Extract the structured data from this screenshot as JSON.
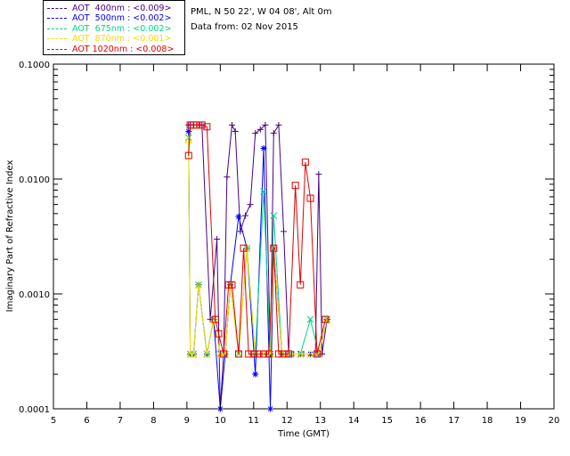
{
  "header": {
    "line1": "PML, N 50 22', W 04 08', Alt 0m",
    "line2": "Data from: 02 Nov 2015"
  },
  "chart_data": {
    "type": "line",
    "xlabel": "Time (GMT)",
    "ylabel": "Imaginary Part of Refractive Index",
    "xlim": [
      5,
      20
    ],
    "ylim": [
      0.0001,
      0.1
    ],
    "yscale": "log",
    "xticks": [
      5,
      6,
      7,
      8,
      9,
      10,
      11,
      12,
      13,
      14,
      15,
      16,
      17,
      18,
      19,
      20
    ],
    "yticks": [
      {
        "value": 0.0001,
        "label": "0.0001"
      },
      {
        "value": 0.001,
        "label": "0.0010"
      },
      {
        "value": 0.01,
        "label": "0.0100"
      },
      {
        "value": 0.1,
        "label": "0.1000"
      }
    ],
    "legend_position": "top-left",
    "series": [
      {
        "name": "AOT  400nm : <0.009>",
        "color": "#4b0082",
        "marker": "plus",
        "x": [
          9.05,
          9.1,
          9.2,
          9.3,
          9.45,
          9.7,
          9.9,
          10.0,
          10.1,
          10.2,
          10.35,
          10.45,
          10.6,
          10.75,
          10.9,
          11.05,
          11.2,
          11.35,
          11.5,
          11.6,
          11.75,
          11.9,
          12.05,
          12.2,
          12.35,
          12.5,
          12.7,
          12.85,
          12.95,
          13.05,
          13.2
        ],
        "y": [
          0.0295,
          0.0295,
          0.0295,
          0.0295,
          0.0295,
          0.0006,
          0.003,
          0.0001,
          0.0003,
          0.0104,
          0.0295,
          0.026,
          0.0035,
          0.0048,
          0.006,
          0.025,
          0.027,
          0.0295,
          0.0003,
          0.025,
          0.0295,
          0.0035,
          0.0003,
          0.0003,
          0.0003,
          0.0003,
          0.0003,
          0.0003,
          0.011,
          0.0003,
          0.0006
        ]
      },
      {
        "name": "AOT  500nm : <0.002>",
        "color": "#0000ff",
        "marker": "asterisk",
        "x": [
          9.05,
          9.1,
          9.2,
          9.35,
          9.6,
          9.8,
          10.0,
          10.15,
          10.3,
          10.55,
          10.8,
          11.05,
          11.3,
          11.5,
          11.6,
          11.85,
          12.1,
          12.4,
          12.7,
          12.95,
          13.2
        ],
        "y": [
          0.026,
          0.0003,
          0.0003,
          0.0012,
          0.0003,
          0.0006,
          0.0001,
          0.0003,
          0.0012,
          0.0047,
          0.0025,
          0.0002,
          0.0185,
          0.0001,
          0.0025,
          0.0003,
          0.0003,
          0.0003,
          0.0003,
          0.0003,
          0.0006
        ]
      },
      {
        "name": "AOT  675nm : <0.002>",
        "color": "#00d48a",
        "marker": "x",
        "x": [
          9.05,
          9.1,
          9.2,
          9.35,
          9.6,
          9.8,
          10.0,
          10.15,
          10.3,
          10.55,
          10.8,
          11.05,
          11.3,
          11.5,
          11.6,
          11.85,
          12.1,
          12.4,
          12.7,
          12.95,
          13.2
        ],
        "y": [
          0.023,
          0.0003,
          0.0003,
          0.0012,
          0.0003,
          0.0006,
          0.0003,
          0.0003,
          0.0012,
          0.0003,
          0.0025,
          0.0003,
          0.0078,
          0.0003,
          0.0048,
          0.0003,
          0.0003,
          0.0003,
          0.0006,
          0.0003,
          0.0006
        ]
      },
      {
        "name": "AOT  870nm : <0.001>",
        "color": "#ffd700",
        "marker": "triangle",
        "x": [
          9.05,
          9.1,
          9.2,
          9.35,
          9.6,
          9.8,
          10.0,
          10.15,
          10.3,
          10.55,
          10.8,
          11.05,
          11.3,
          11.5,
          11.6,
          11.85,
          12.1,
          12.4,
          12.7,
          12.95,
          13.2
        ],
        "y": [
          0.022,
          0.0003,
          0.0003,
          0.0012,
          0.0003,
          0.0006,
          0.0003,
          0.0003,
          0.0012,
          0.0003,
          0.0025,
          0.0003,
          0.0003,
          0.0003,
          0.0025,
          0.0003,
          0.0003,
          0.0003,
          0.0003,
          0.0003,
          0.0006
        ]
      },
      {
        "name": "AOT 1020nm : <0.008>",
        "color": "#e00000",
        "marker": "square",
        "x": [
          9.05,
          9.1,
          9.2,
          9.3,
          9.45,
          9.6,
          9.85,
          9.95,
          10.1,
          10.25,
          10.35,
          10.55,
          10.7,
          10.85,
          11.0,
          11.15,
          11.3,
          11.45,
          11.6,
          11.75,
          11.9,
          12.05,
          12.25,
          12.4,
          12.55,
          12.7,
          12.9,
          13.15
        ],
        "y": [
          0.016,
          0.0295,
          0.0295,
          0.0295,
          0.0295,
          0.0285,
          0.0006,
          0.00045,
          0.0003,
          0.0012,
          0.0012,
          0.0003,
          0.0025,
          0.0003,
          0.0003,
          0.0003,
          0.0003,
          0.0003,
          0.0025,
          0.0003,
          0.0003,
          0.0003,
          0.0088,
          0.0012,
          0.014,
          0.0068,
          0.0003,
          0.0006
        ]
      }
    ]
  }
}
